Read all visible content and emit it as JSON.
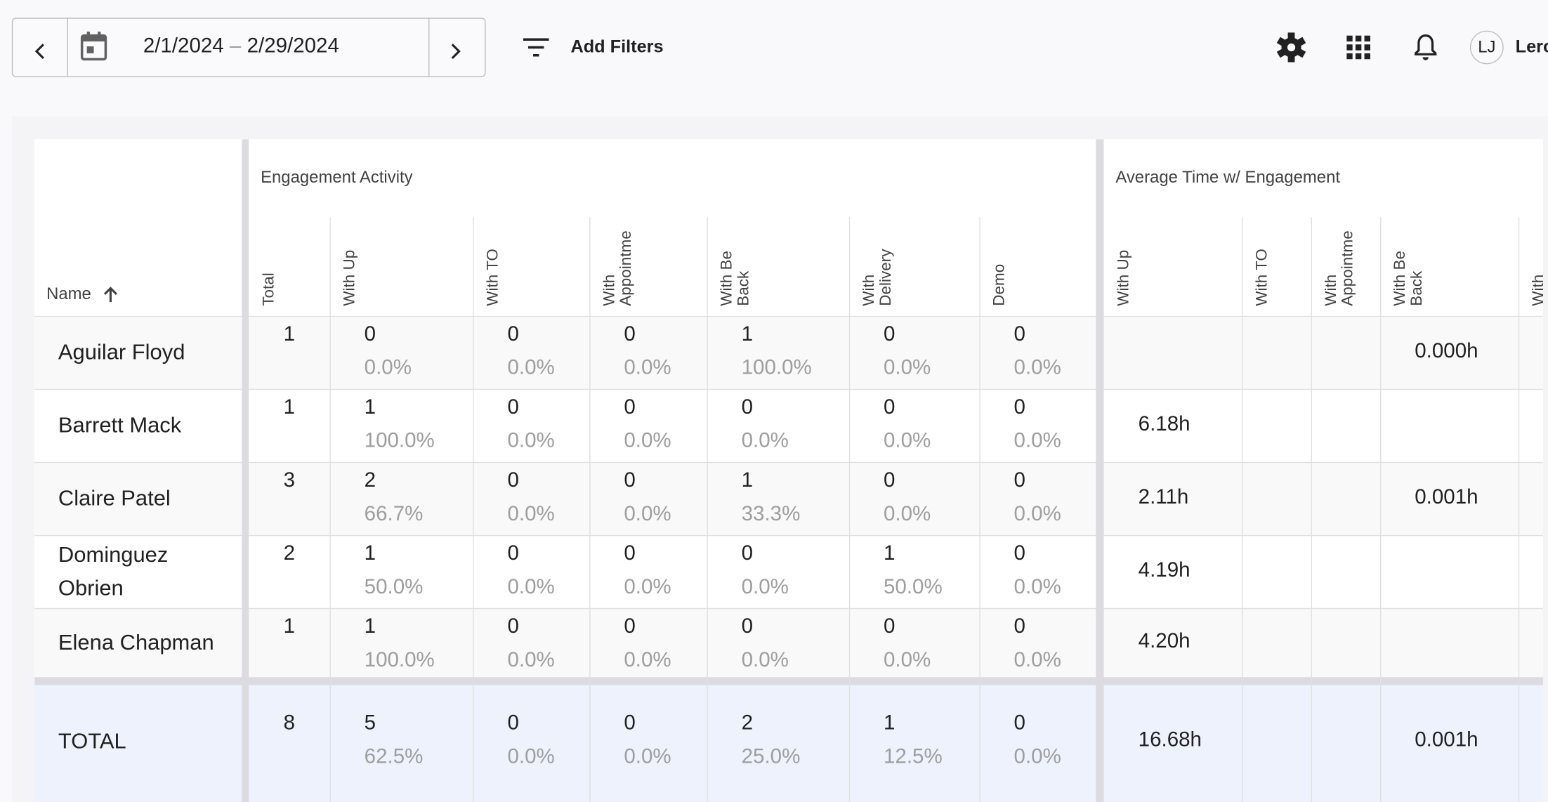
{
  "header": {
    "date_start": "2/1/2024",
    "date_sep": "–",
    "date_end": "2/29/2024",
    "filters_label": "Add Filters",
    "avatar_initials": "LJ",
    "user_name": "Lero"
  },
  "table": {
    "name_header": "Name",
    "groups": [
      {
        "label": "Engagement Activity",
        "columns": [
          "Total",
          "With Up",
          "With TO",
          "With Appointme",
          "With Be Back",
          "With Delivery",
          "Demo"
        ]
      },
      {
        "label": "Average Time w/ Engagement",
        "columns": [
          "With Up",
          "With TO",
          "With Appointme",
          "With Be Back",
          "With"
        ]
      }
    ],
    "rows": [
      {
        "name": "Aguilar Floyd",
        "total": "1",
        "activity": [
          {
            "count": "0",
            "pct": "0.0%"
          },
          {
            "count": "0",
            "pct": "0.0%"
          },
          {
            "count": "0",
            "pct": "0.0%"
          },
          {
            "count": "1",
            "pct": "100.0%"
          },
          {
            "count": "0",
            "pct": "0.0%"
          },
          {
            "count": "0",
            "pct": "0.0%"
          }
        ],
        "avg_time": [
          null,
          null,
          null,
          "0.000h",
          null
        ]
      },
      {
        "name": "Barrett Mack",
        "total": "1",
        "activity": [
          {
            "count": "1",
            "pct": "100.0%"
          },
          {
            "count": "0",
            "pct": "0.0%"
          },
          {
            "count": "0",
            "pct": "0.0%"
          },
          {
            "count": "0",
            "pct": "0.0%"
          },
          {
            "count": "0",
            "pct": "0.0%"
          },
          {
            "count": "0",
            "pct": "0.0%"
          }
        ],
        "avg_time": [
          "6.18h",
          null,
          null,
          null,
          null
        ]
      },
      {
        "name": "Claire Patel",
        "total": "3",
        "activity": [
          {
            "count": "2",
            "pct": "66.7%"
          },
          {
            "count": "0",
            "pct": "0.0%"
          },
          {
            "count": "0",
            "pct": "0.0%"
          },
          {
            "count": "1",
            "pct": "33.3%"
          },
          {
            "count": "0",
            "pct": "0.0%"
          },
          {
            "count": "0",
            "pct": "0.0%"
          }
        ],
        "avg_time": [
          "2.11h",
          null,
          null,
          "0.001h",
          null
        ]
      },
      {
        "name": "Dominguez Obrien",
        "total": "2",
        "activity": [
          {
            "count": "1",
            "pct": "50.0%"
          },
          {
            "count": "0",
            "pct": "0.0%"
          },
          {
            "count": "0",
            "pct": "0.0%"
          },
          {
            "count": "0",
            "pct": "0.0%"
          },
          {
            "count": "1",
            "pct": "50.0%"
          },
          {
            "count": "0",
            "pct": "0.0%"
          }
        ],
        "avg_time": [
          "4.19h",
          null,
          null,
          null,
          null
        ]
      },
      {
        "name": "Elena Chapman",
        "total": "1",
        "activity": [
          {
            "count": "1",
            "pct": "100.0%"
          },
          {
            "count": "0",
            "pct": "0.0%"
          },
          {
            "count": "0",
            "pct": "0.0%"
          },
          {
            "count": "0",
            "pct": "0.0%"
          },
          {
            "count": "0",
            "pct": "0.0%"
          },
          {
            "count": "0",
            "pct": "0.0%"
          }
        ],
        "avg_time": [
          "4.20h",
          null,
          null,
          null,
          null
        ]
      }
    ],
    "total_row": {
      "name": "TOTAL",
      "total": "8",
      "activity": [
        {
          "count": "5",
          "pct": "62.5%"
        },
        {
          "count": "0",
          "pct": "0.0%"
        },
        {
          "count": "0",
          "pct": "0.0%"
        },
        {
          "count": "2",
          "pct": "25.0%"
        },
        {
          "count": "1",
          "pct": "12.5%"
        },
        {
          "count": "0",
          "pct": "0.0%"
        }
      ],
      "avg_time": [
        "16.68h",
        null,
        null,
        "0.001h",
        null
      ]
    }
  }
}
